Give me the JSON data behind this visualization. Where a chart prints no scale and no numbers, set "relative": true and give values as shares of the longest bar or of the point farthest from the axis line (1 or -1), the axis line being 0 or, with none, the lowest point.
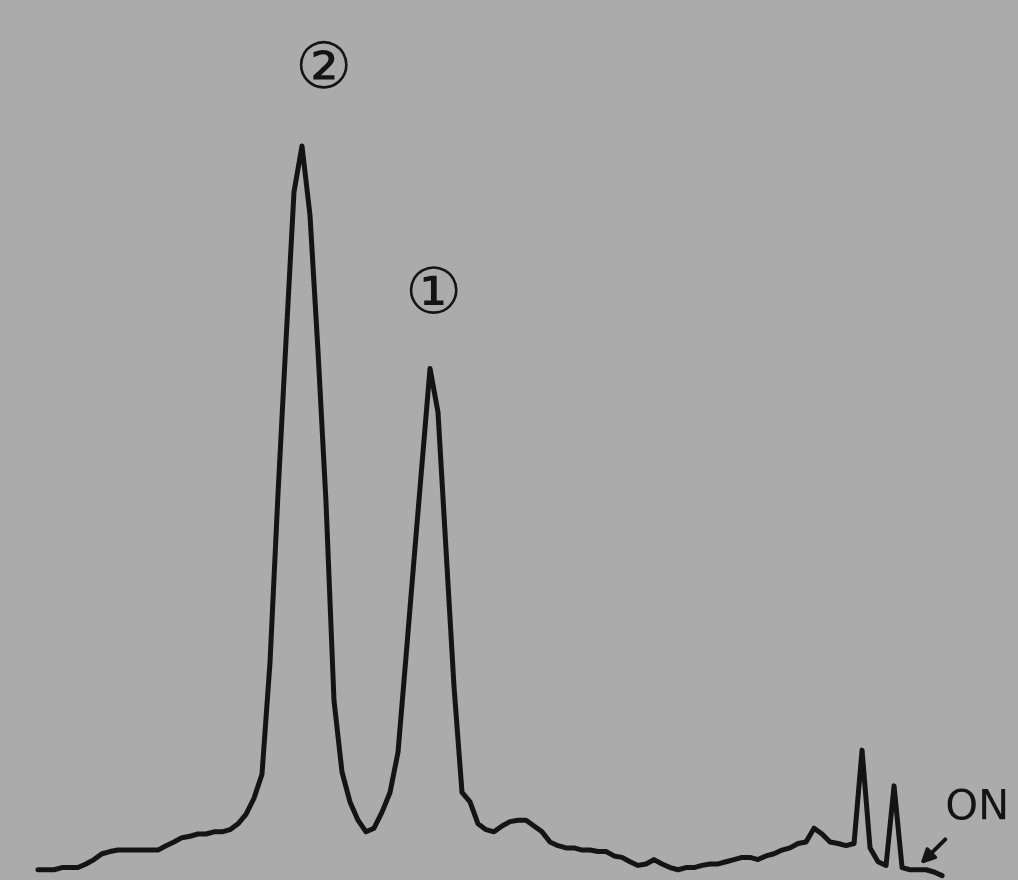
{
  "chart_data": {
    "type": "line",
    "relative": true,
    "line_style": "solid",
    "color": "#141414",
    "categories": [
      null,
      null,
      null,
      null,
      null,
      null,
      null,
      null,
      null,
      null,
      null,
      null,
      null,
      null,
      null,
      null,
      null,
      null,
      null,
      null,
      null,
      null,
      null,
      null,
      null,
      null,
      null,
      null,
      null,
      null,
      null,
      null,
      null,
      null,
      null,
      null,
      null,
      null,
      null,
      null,
      null,
      null,
      null,
      null,
      null,
      null,
      null,
      null,
      null,
      null,
      null,
      null,
      null,
      null,
      null,
      null,
      null,
      null,
      null,
      null,
      null,
      null,
      null,
      null,
      null,
      null,
      null,
      null,
      null,
      null,
      null,
      null,
      null,
      null,
      null,
      null,
      null,
      null,
      null,
      null,
      null,
      null,
      null,
      null,
      null,
      null,
      null,
      null,
      null,
      null,
      null,
      null,
      null,
      null,
      null,
      null,
      null,
      null,
      null,
      null,
      null,
      null,
      null,
      null,
      null,
      null,
      null,
      null,
      null,
      null,
      null,
      null,
      null,
      null
    ],
    "values": [
      0.008,
      0.008,
      0.008,
      0.011,
      0.011,
      0.011,
      0.016,
      0.022,
      0.03,
      0.033,
      0.035,
      0.035,
      0.035,
      0.035,
      0.035,
      0.035,
      0.041,
      0.046,
      0.052,
      0.054,
      0.057,
      0.057,
      0.06,
      0.06,
      0.063,
      0.071,
      0.084,
      0.106,
      0.139,
      0.292,
      0.523,
      0.733,
      0.937,
      1,
      0.905,
      0.719,
      0.512,
      0.24,
      0.142,
      0.101,
      0.076,
      0.06,
      0.065,
      0.087,
      0.114,
      0.169,
      0.3,
      0.433,
      0.564,
      0.695,
      0.635,
      0.447,
      0.259,
      0.114,
      0.101,
      0.071,
      0.063,
      0.06,
      0.068,
      0.074,
      0.076,
      0.076,
      0.068,
      0.06,
      0.046,
      0.041,
      0.038,
      0.038,
      0.035,
      0.035,
      0.033,
      0.033,
      0.027,
      0.025,
      0.019,
      0.014,
      0.016,
      0.022,
      0.016,
      0.011,
      0.008,
      0.011,
      0.011,
      0.014,
      0.016,
      0.016,
      0.019,
      0.022,
      0.025,
      0.025,
      0.022,
      0.027,
      0.03,
      0.035,
      0.038,
      0.044,
      0.046,
      0.065,
      0.057,
      0.046,
      0.044,
      0.041,
      0.044,
      0.172,
      0.038,
      0.019,
      0.014,
      0.123,
      0.011,
      0.008,
      0.008,
      0.008,
      0.005,
      0
    ],
    "annotations": [
      "②",
      "①",
      "ON"
    ]
  }
}
